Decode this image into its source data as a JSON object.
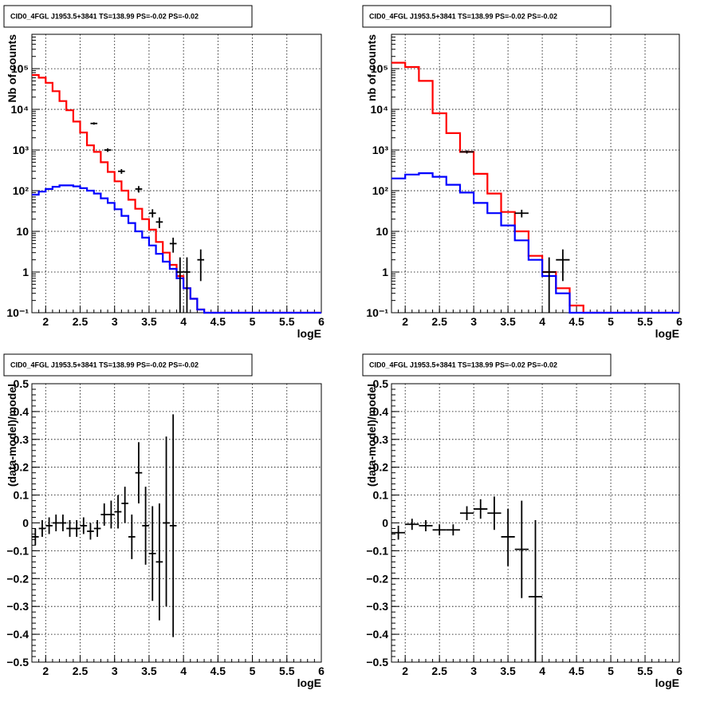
{
  "panels": [
    {
      "title": "CID0_4FGL J1953.5+3841 TS=138.99 PS=-0.02 PS=-0.02",
      "xlabel": "logE",
      "ylabel": "Nb of counts",
      "colors": {
        "model": "#ff0000",
        "source": "#0000ff",
        "data": "#000000"
      }
    },
    {
      "title": "CID0_4FGL J1953.5+3841 TS=138.99 PS=-0.02 PS=-0.02",
      "xlabel": "logE",
      "ylabel": "nb of counts",
      "colors": {
        "model": "#ff0000",
        "source": "#0000ff",
        "data": "#000000"
      }
    },
    {
      "title": "CID0_4FGL J1953.5+3841 TS=138.99 PS=-0.02 PS=-0.02",
      "xlabel": "logE",
      "ylabel": "(data-model)/model",
      "colors": {
        "data": "#000000"
      }
    },
    {
      "title": "CID0_4FGL J1953.5+3841 TS=138.99 PS=-0.02 PS=-0.02",
      "xlabel": "logE",
      "ylabel": "(data-model)/model",
      "colors": {
        "data": "#000000"
      }
    }
  ],
  "chart_data": [
    {
      "type": "line",
      "title": "CID0_4FGL J1953.5+3841 TS=138.99 PS=-0.02 PS=-0.02",
      "xlabel": "logE",
      "ylabel": "Nb of counts",
      "xlim": [
        1.8,
        6
      ],
      "ylim": [
        0.1,
        700000
      ],
      "ylog": true,
      "grid": true,
      "xticks": [
        2,
        2.5,
        3,
        3.5,
        4,
        4.5,
        5,
        5.5,
        6
      ],
      "xtick_labels": [
        "2",
        "2.5",
        "3",
        "3.5",
        "4",
        "4.5",
        "5",
        "5.5",
        "6"
      ],
      "yticks": [
        0.1,
        1,
        10,
        100,
        1000,
        10000,
        100000
      ],
      "ytick_labels": [
        "10⁻¹",
        "1",
        "10",
        "10²",
        "10³",
        "10⁴",
        "10⁵"
      ],
      "bin_edges": [
        1.8,
        1.9,
        2.0,
        2.1,
        2.2,
        2.3,
        2.4,
        2.5,
        2.6,
        2.7,
        2.8,
        2.9,
        3.0,
        3.1,
        3.2,
        3.3,
        3.4,
        3.5,
        3.6,
        3.7,
        3.8,
        3.9,
        4.0,
        4.1,
        4.2,
        4.3,
        4.4,
        4.5,
        4.6,
        4.7,
        4.8,
        4.9,
        5.0,
        5.1,
        5.2,
        5.3,
        5.4,
        5.5,
        5.6,
        5.7,
        5.8,
        5.9,
        6.0
      ],
      "series": [
        {
          "kind": "step",
          "color": "#ff0000",
          "values": [
            70000,
            60000,
            45000,
            28000,
            16000,
            9500,
            5000,
            2700,
            1300,
            900,
            500,
            290,
            170,
            100,
            60,
            36,
            20,
            11,
            5.5,
            3,
            1.5,
            0.8,
            0.4,
            0.22,
            0.12,
            0.1,
            0.1,
            0.1,
            0.1,
            0.1,
            0.1,
            0.1,
            0.1,
            0.1,
            0.1,
            0.1,
            0.1,
            0.1,
            0.1,
            0.1,
            0.1,
            0.1
          ]
        },
        {
          "kind": "step",
          "color": "#0000ff",
          "values": [
            80,
            95,
            110,
            125,
            135,
            135,
            128,
            115,
            100,
            85,
            65,
            50,
            35,
            24,
            16,
            10,
            7,
            4.5,
            2.8,
            1.8,
            1.2,
            0.7,
            0.4,
            0.22,
            0.12,
            0.1,
            0.1,
            0.1,
            0.1,
            0.1,
            0.1,
            0.1,
            0.1,
            0.1,
            0.1,
            0.1,
            0.1,
            0.1,
            0.1,
            0.1,
            0.1,
            0.1
          ]
        },
        {
          "kind": "errorbar",
          "color": "#000000",
          "points": [
            {
              "x": 2.7,
              "y": 4500,
              "xerr": 0.05,
              "ylo": 4200,
              "yhi": 4800
            },
            {
              "x": 2.9,
              "y": 1000,
              "xerr": 0.05,
              "ylo": 900,
              "yhi": 1100
            },
            {
              "x": 3.1,
              "y": 300,
              "xerr": 0.05,
              "ylo": 260,
              "yhi": 340
            },
            {
              "x": 3.35,
              "y": 110,
              "xerr": 0.05,
              "ylo": 90,
              "yhi": 130
            },
            {
              "x": 3.55,
              "y": 28,
              "xerr": 0.05,
              "ylo": 22,
              "yhi": 35
            },
            {
              "x": 3.65,
              "y": 17,
              "xerr": 0.05,
              "ylo": 12,
              "yhi": 22
            },
            {
              "x": 3.85,
              "y": 5,
              "xerr": 0.05,
              "ylo": 3,
              "yhi": 7
            },
            {
              "x": 3.95,
              "y": 1,
              "xerr": 0.05,
              "ylo": 0.1,
              "yhi": 2.3
            },
            {
              "x": 4.05,
              "y": 1,
              "xerr": 0.05,
              "ylo": 0.1,
              "yhi": 2.3
            },
            {
              "x": 4.25,
              "y": 2,
              "xerr": 0.05,
              "ylo": 0.6,
              "yhi": 3.6
            }
          ]
        }
      ]
    },
    {
      "type": "line",
      "title": "CID0_4FGL J1953.5+3841 TS=138.99 PS=-0.02 PS=-0.02",
      "xlabel": "logE",
      "ylabel": "nb of counts",
      "xlim": [
        1.8,
        6
      ],
      "ylim": [
        0.1,
        700000
      ],
      "ylog": true,
      "grid": true,
      "xticks": [
        2,
        2.5,
        3,
        3.5,
        4,
        4.5,
        5,
        5.5,
        6
      ],
      "xtick_labels": [
        "2",
        "2.5",
        "3",
        "3.5",
        "4",
        "4.5",
        "5",
        "5.5",
        "6"
      ],
      "yticks": [
        0.1,
        1,
        10,
        100,
        1000,
        10000,
        100000
      ],
      "ytick_labels": [
        "10⁻¹",
        "1",
        "10",
        "10²",
        "10³",
        "10⁴",
        "10⁵"
      ],
      "bin_edges": [
        1.8,
        2.0,
        2.2,
        2.4,
        2.6,
        2.8,
        3.0,
        3.2,
        3.4,
        3.6,
        3.8,
        4.0,
        4.2,
        4.4,
        4.6,
        4.8,
        5.0,
        5.2,
        5.4,
        5.6,
        5.8,
        6.0
      ],
      "series": [
        {
          "kind": "step",
          "color": "#ff0000",
          "values": [
            140000,
            110000,
            50000,
            8000,
            2600,
            900,
            260,
            85,
            30,
            10,
            2.5,
            1,
            0.4,
            0.15,
            0.1,
            0.1,
            0.1,
            0.1,
            0.1,
            0.1,
            0.1
          ]
        },
        {
          "kind": "step",
          "color": "#0000ff",
          "values": [
            200,
            250,
            270,
            220,
            140,
            90,
            50,
            28,
            14,
            6,
            2,
            0.8,
            0.3,
            0.1,
            0.1,
            0.1,
            0.1,
            0.1,
            0.1,
            0.1,
            0.1
          ]
        },
        {
          "kind": "errorbar",
          "color": "#000000",
          "points": [
            {
              "x": 2.9,
              "y": 900,
              "xerr": 0.1,
              "ylo": 820,
              "yhi": 980
            },
            {
              "x": 3.7,
              "y": 28,
              "xerr": 0.1,
              "ylo": 22,
              "yhi": 34
            },
            {
              "x": 4.1,
              "y": 1,
              "xerr": 0.1,
              "ylo": 0.1,
              "yhi": 2.3
            },
            {
              "x": 4.3,
              "y": 2,
              "xerr": 0.1,
              "ylo": 0.6,
              "yhi": 3.6
            }
          ]
        }
      ]
    },
    {
      "type": "scatter",
      "title": "CID0_4FGL J1953.5+3841 TS=138.99 PS=-0.02 PS=-0.02",
      "xlabel": "logE",
      "ylabel": "(data-model)/model",
      "xlim": [
        1.8,
        6
      ],
      "ylim": [
        -0.5,
        0.5
      ],
      "ylog": false,
      "grid": true,
      "xticks": [
        2,
        2.5,
        3,
        3.5,
        4,
        4.5,
        5,
        5.5,
        6
      ],
      "xtick_labels": [
        "2",
        "2.5",
        "3",
        "3.5",
        "4",
        "4.5",
        "5",
        "5.5",
        "6"
      ],
      "yticks": [
        -0.5,
        -0.4,
        -0.3,
        -0.2,
        -0.1,
        0,
        0.1,
        0.2,
        0.3,
        0.4,
        0.5
      ],
      "ytick_labels": [
        "−0.5",
        "−0.4",
        "−0.3",
        "−0.2",
        "−0.1",
        "0",
        "0.1",
        "0.2",
        "0.3",
        "0.4",
        "0.5"
      ],
      "series": [
        {
          "kind": "errorbar",
          "color": "#000000",
          "points": [
            {
              "x": 1.85,
              "y": -0.05,
              "xerr": 0.05,
              "ylo": -0.08,
              "yhi": -0.02
            },
            {
              "x": 1.95,
              "y": -0.02,
              "xerr": 0.05,
              "ylo": -0.05,
              "yhi": 0.01
            },
            {
              "x": 2.05,
              "y": -0.01,
              "xerr": 0.05,
              "ylo": -0.04,
              "yhi": 0.02
            },
            {
              "x": 2.15,
              "y": 0.0,
              "xerr": 0.05,
              "ylo": -0.03,
              "yhi": 0.03
            },
            {
              "x": 2.25,
              "y": 0.0,
              "xerr": 0.05,
              "ylo": -0.03,
              "yhi": 0.03
            },
            {
              "x": 2.35,
              "y": -0.02,
              "xerr": 0.05,
              "ylo": -0.05,
              "yhi": 0.01
            },
            {
              "x": 2.45,
              "y": -0.02,
              "xerr": 0.05,
              "ylo": -0.05,
              "yhi": 0.01
            },
            {
              "x": 2.55,
              "y": -0.01,
              "xerr": 0.05,
              "ylo": -0.04,
              "yhi": 0.02
            },
            {
              "x": 2.65,
              "y": -0.03,
              "xerr": 0.05,
              "ylo": -0.06,
              "yhi": 0.0
            },
            {
              "x": 2.75,
              "y": -0.02,
              "xerr": 0.05,
              "ylo": -0.05,
              "yhi": 0.01
            },
            {
              "x": 2.85,
              "y": 0.03,
              "xerr": 0.05,
              "ylo": -0.01,
              "yhi": 0.07
            },
            {
              "x": 2.95,
              "y": 0.03,
              "xerr": 0.05,
              "ylo": -0.02,
              "yhi": 0.08
            },
            {
              "x": 3.05,
              "y": 0.04,
              "xerr": 0.05,
              "ylo": -0.02,
              "yhi": 0.1
            },
            {
              "x": 3.15,
              "y": 0.07,
              "xerr": 0.05,
              "ylo": 0.0,
              "yhi": 0.13
            },
            {
              "x": 3.25,
              "y": -0.05,
              "xerr": 0.05,
              "ylo": -0.13,
              "yhi": 0.03
            },
            {
              "x": 3.35,
              "y": 0.18,
              "xerr": 0.05,
              "ylo": 0.07,
              "yhi": 0.29
            },
            {
              "x": 3.45,
              "y": -0.01,
              "xerr": 0.05,
              "ylo": -0.15,
              "yhi": 0.13
            },
            {
              "x": 3.55,
              "y": -0.11,
              "xerr": 0.05,
              "ylo": -0.28,
              "yhi": 0.06
            },
            {
              "x": 3.65,
              "y": -0.14,
              "xerr": 0.05,
              "ylo": -0.35,
              "yhi": 0.07
            },
            {
              "x": 3.75,
              "y": 0.0,
              "xerr": 0.05,
              "ylo": -0.3,
              "yhi": 0.31
            },
            {
              "x": 3.85,
              "y": -0.01,
              "xerr": 0.05,
              "ylo": -0.41,
              "yhi": 0.39
            }
          ]
        }
      ]
    },
    {
      "type": "scatter",
      "title": "CID0_4FGL J1953.5+3841 TS=138.99 PS=-0.02 PS=-0.02",
      "xlabel": "logE",
      "ylabel": "(data-model)/model",
      "xlim": [
        1.8,
        6
      ],
      "ylim": [
        -0.5,
        0.5
      ],
      "ylog": false,
      "grid": true,
      "xticks": [
        2,
        2.5,
        3,
        3.5,
        4,
        4.5,
        5,
        5.5,
        6
      ],
      "xtick_labels": [
        "2",
        "2.5",
        "3",
        "3.5",
        "4",
        "4.5",
        "5",
        "5.5",
        "6"
      ],
      "yticks": [
        -0.5,
        -0.4,
        -0.3,
        -0.2,
        -0.1,
        0,
        0.1,
        0.2,
        0.3,
        0.4,
        0.5
      ],
      "ytick_labels": [
        "−0.5",
        "−0.4",
        "−0.3",
        "−0.2",
        "−0.1",
        "0",
        "0.1",
        "0.2",
        "0.3",
        "0.4",
        "0.5"
      ],
      "series": [
        {
          "kind": "errorbar",
          "color": "#000000",
          "points": [
            {
              "x": 1.9,
              "y": -0.035,
              "xerr": 0.1,
              "ylo": -0.06,
              "yhi": -0.01
            },
            {
              "x": 2.1,
              "y": -0.005,
              "xerr": 0.1,
              "ylo": -0.025,
              "yhi": 0.015
            },
            {
              "x": 2.3,
              "y": -0.01,
              "xerr": 0.1,
              "ylo": -0.03,
              "yhi": 0.01
            },
            {
              "x": 2.5,
              "y": -0.025,
              "xerr": 0.1,
              "ylo": -0.045,
              "yhi": -0.005
            },
            {
              "x": 2.7,
              "y": -0.025,
              "xerr": 0.1,
              "ylo": -0.045,
              "yhi": -0.005
            },
            {
              "x": 2.9,
              "y": 0.035,
              "xerr": 0.1,
              "ylo": 0.01,
              "yhi": 0.06
            },
            {
              "x": 3.1,
              "y": 0.05,
              "xerr": 0.1,
              "ylo": 0.015,
              "yhi": 0.085
            },
            {
              "x": 3.3,
              "y": 0.035,
              "xerr": 0.1,
              "ylo": -0.025,
              "yhi": 0.095
            },
            {
              "x": 3.5,
              "y": -0.05,
              "xerr": 0.1,
              "ylo": -0.155,
              "yhi": 0.05
            },
            {
              "x": 3.7,
              "y": -0.095,
              "xerr": 0.1,
              "ylo": -0.27,
              "yhi": 0.08
            },
            {
              "x": 3.9,
              "y": -0.265,
              "xerr": 0.1,
              "ylo": -0.5,
              "yhi": 0.01
            }
          ]
        }
      ]
    }
  ]
}
